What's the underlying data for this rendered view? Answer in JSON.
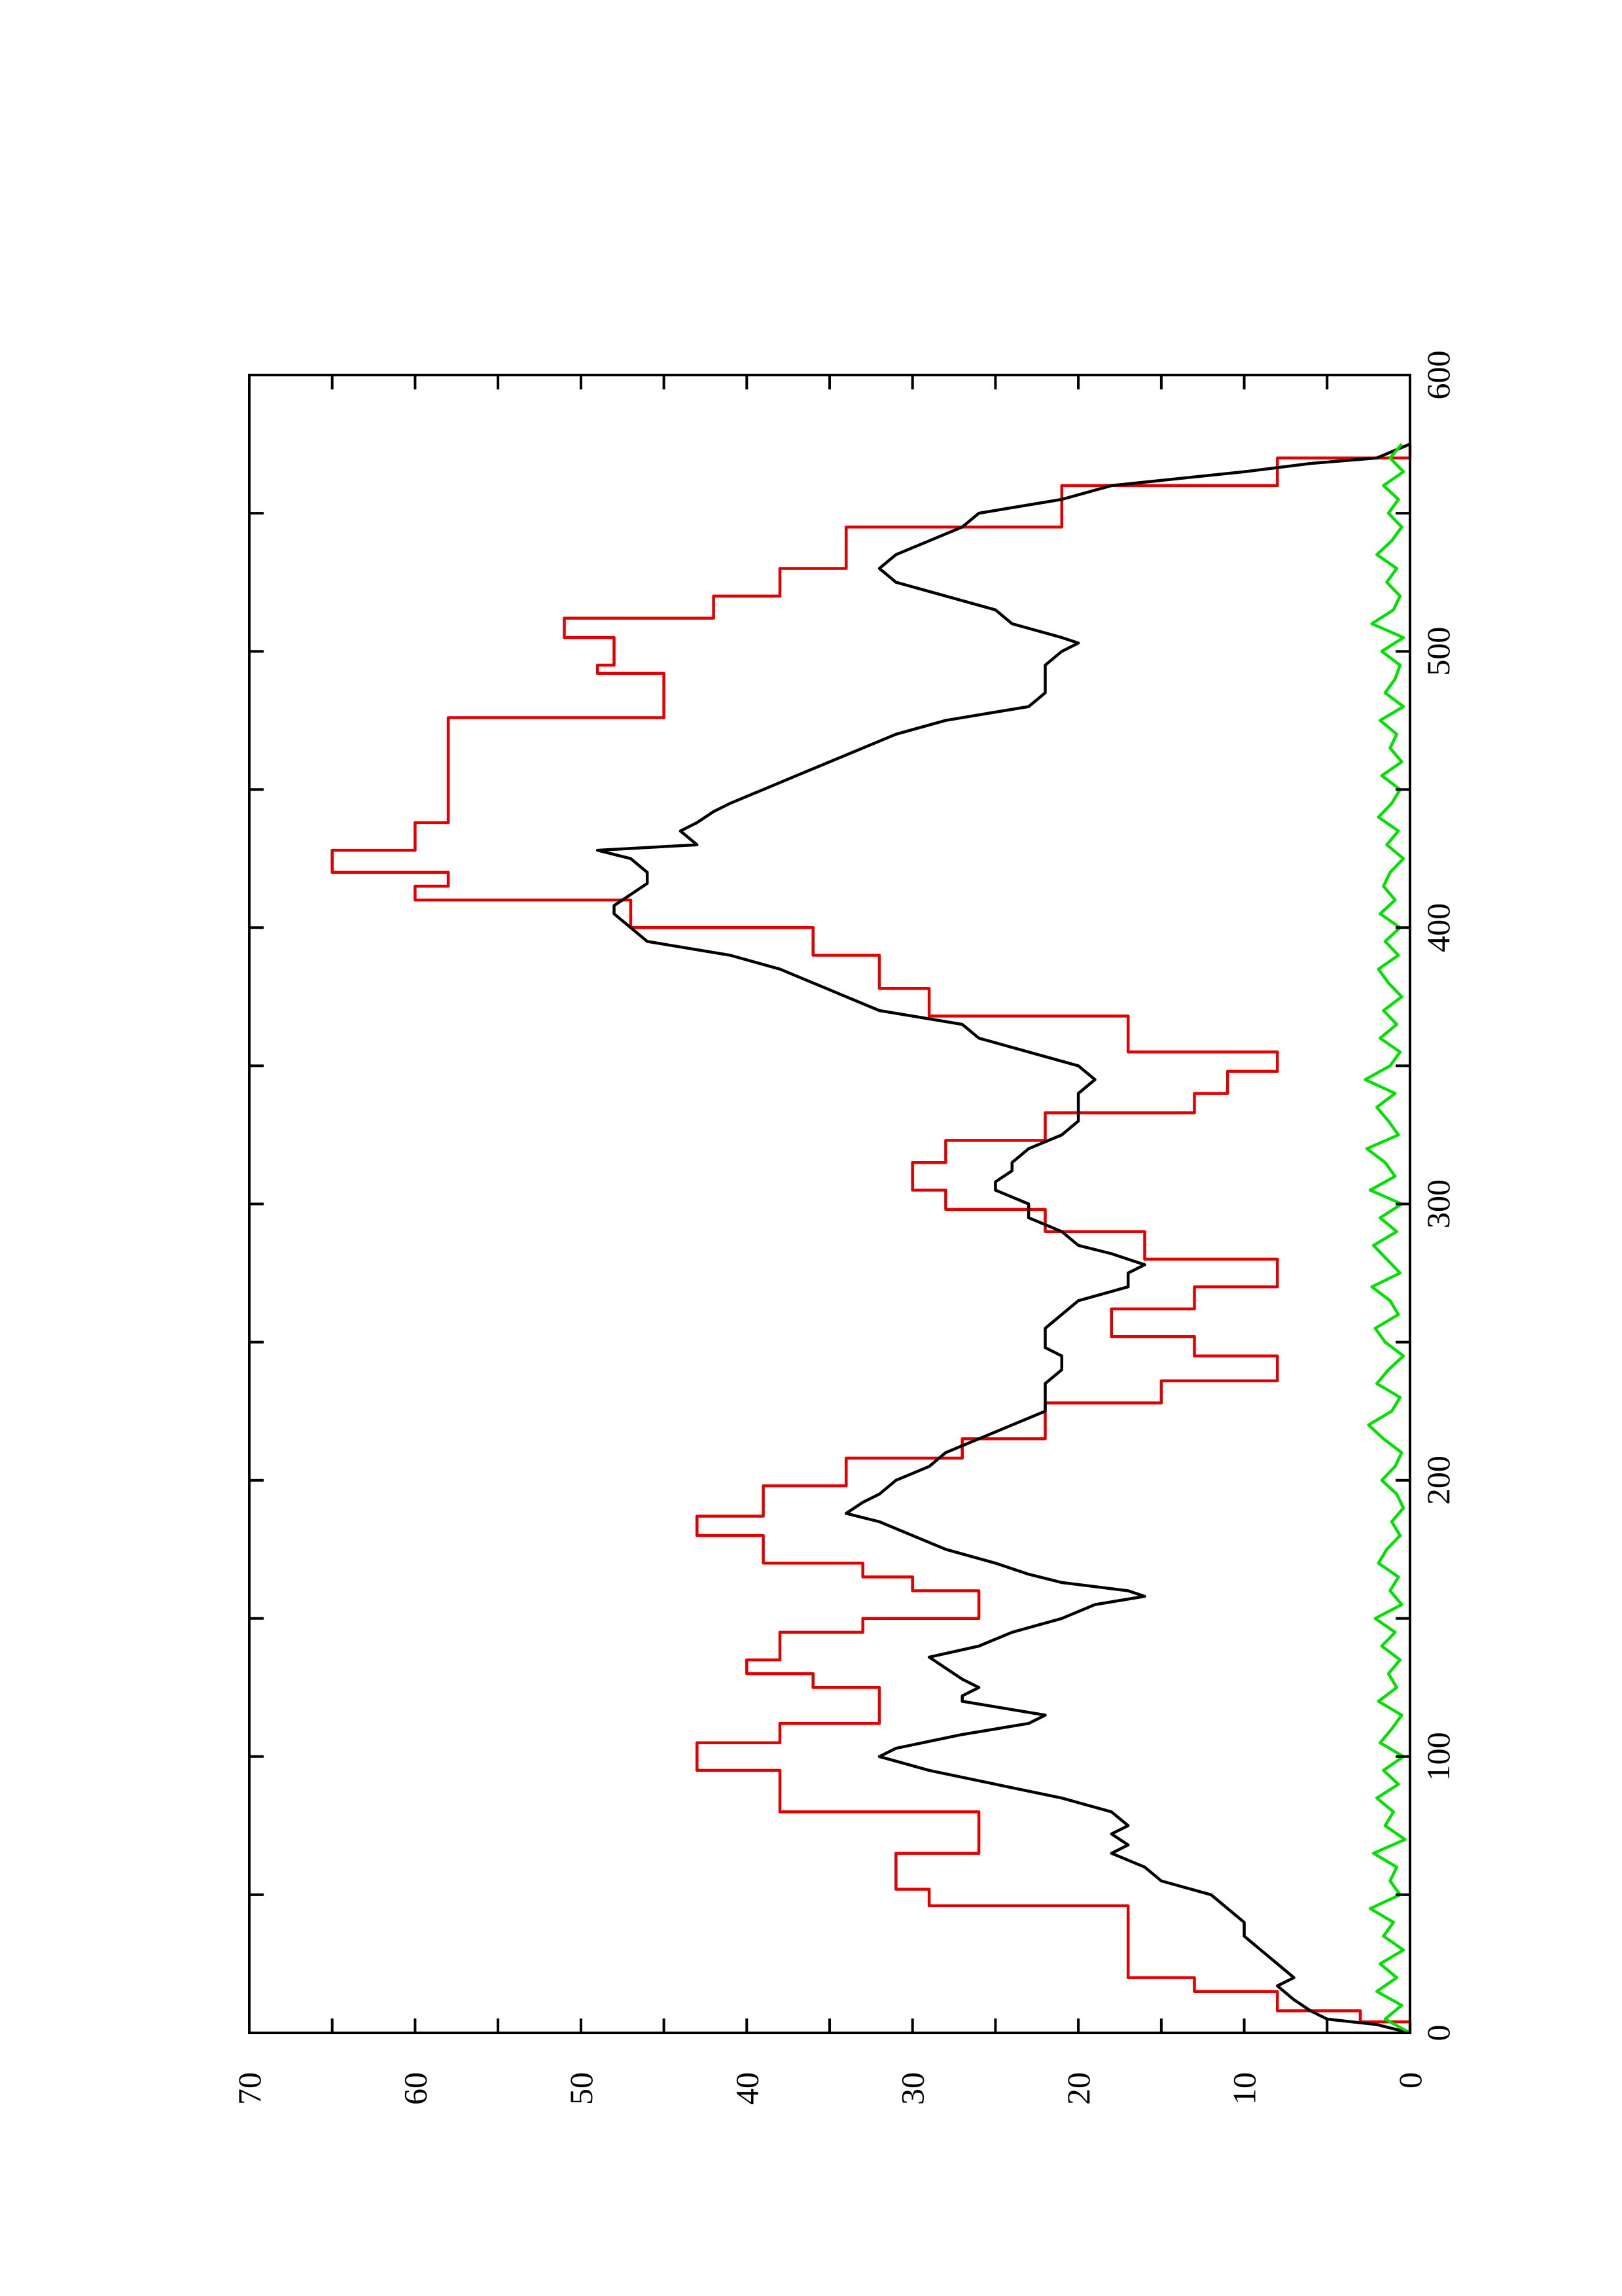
{
  "chart_data": {
    "type": "line",
    "orientation": "rotated-90-ccw",
    "title": "",
    "xlabel": "",
    "ylabel": "",
    "xlim": [
      0,
      600
    ],
    "ylim": [
      0,
      70
    ],
    "grid": false,
    "x_ticks": [
      "0",
      "100",
      "200",
      "300",
      "400",
      "500",
      "600"
    ],
    "y_ticks": [
      "0",
      "10",
      "20",
      "30",
      "40",
      "50",
      "60",
      "70"
    ],
    "colors": {
      "red_series": "#e00000",
      "black_series": "#000000",
      "green_series": "#00e000",
      "axes": "#000000"
    },
    "series": [
      {
        "color": "#e00000",
        "style": "step",
        "x": [
          0,
          4,
          4,
          8,
          8,
          15,
          15,
          20,
          20,
          32,
          32,
          46,
          46,
          52,
          52,
          65,
          65,
          80,
          80,
          95,
          95,
          105,
          105,
          112,
          112,
          125,
          125,
          130,
          130,
          135,
          135,
          145,
          145,
          150,
          150,
          160,
          160,
          165,
          165,
          170,
          170,
          180,
          180,
          187,
          187,
          198,
          198,
          208,
          208,
          215,
          215,
          228,
          228,
          236,
          236,
          245,
          245,
          252,
          252,
          262,
          262,
          270,
          270,
          280,
          280,
          290,
          290,
          298,
          298,
          305,
          305,
          315,
          315,
          323,
          323,
          333,
          333,
          340,
          340,
          348,
          348,
          355,
          355,
          368,
          368,
          378,
          378,
          390,
          390,
          400,
          400,
          410,
          410,
          415,
          415,
          420,
          420,
          428,
          428,
          438,
          438,
          455,
          455,
          476,
          476,
          492,
          492,
          495,
          495,
          505,
          505,
          512,
          512,
          520,
          520,
          530,
          530,
          545,
          545,
          560,
          560,
          570,
          570,
          575
        ],
        "y": [
          0,
          0,
          3,
          3,
          8,
          8,
          13,
          13,
          17,
          17,
          17,
          17,
          29,
          29,
          31,
          31,
          26,
          26,
          38,
          38,
          43,
          43,
          38,
          38,
          32,
          32,
          36,
          36,
          40,
          40,
          38,
          38,
          33,
          33,
          26,
          26,
          30,
          30,
          33,
          33,
          39,
          39,
          43,
          43,
          39,
          39,
          34,
          34,
          27,
          27,
          22,
          22,
          15,
          15,
          8,
          8,
          13,
          13,
          18,
          18,
          13,
          13,
          8,
          8,
          16,
          16,
          22,
          22,
          28,
          28,
          30,
          30,
          28,
          28,
          22,
          22,
          13,
          13,
          11,
          11,
          8,
          8,
          17,
          17,
          29,
          29,
          32,
          32,
          36,
          36,
          47,
          47,
          60,
          60,
          58,
          58,
          65,
          65,
          60,
          60,
          58,
          58,
          58,
          58,
          45,
          45,
          49,
          49,
          48,
          48,
          51,
          51,
          42,
          42,
          38,
          38,
          34,
          34,
          21,
          21,
          8,
          8,
          0,
          0
        ]
      },
      {
        "color": "#000000",
        "style": "line",
        "x": [
          0,
          3,
          5,
          8,
          12,
          17,
          20,
          25,
          30,
          35,
          40,
          45,
          50,
          55,
          60,
          65,
          68,
          72,
          75,
          80,
          85,
          90,
          95,
          100,
          103,
          108,
          112,
          115,
          118,
          120,
          122,
          125,
          128,
          132,
          136,
          140,
          145,
          150,
          155,
          158,
          160,
          163,
          166,
          170,
          175,
          180,
          185,
          188,
          192,
          195,
          200,
          205,
          210,
          215,
          220,
          225,
          230,
          235,
          240,
          245,
          248,
          252,
          255,
          260,
          265,
          270,
          275,
          278,
          282,
          285,
          290,
          295,
          300,
          305,
          308,
          312,
          315,
          320,
          325,
          330,
          335,
          340,
          345,
          350,
          355,
          360,
          365,
          370,
          375,
          380,
          385,
          390,
          395,
          400,
          405,
          408,
          412,
          416,
          420,
          425,
          428,
          430,
          435,
          438,
          442,
          445,
          450,
          455,
          460,
          465,
          470,
          475,
          478,
          480,
          485,
          490,
          495,
          500,
          503,
          505,
          510,
          515,
          520,
          525,
          530,
          535,
          540,
          545,
          550,
          555,
          560,
          565,
          568,
          570,
          575
        ],
        "y": [
          0,
          2,
          5,
          6,
          7,
          8,
          7,
          8,
          9,
          10,
          10,
          11,
          12,
          15,
          16,
          18,
          17,
          18,
          17,
          18,
          21,
          25,
          29,
          32,
          31,
          27,
          23,
          22,
          25,
          27,
          27,
          26,
          27,
          28,
          29,
          26,
          24,
          21,
          19,
          16,
          17,
          21,
          23,
          25,
          28,
          30,
          32,
          34,
          33,
          32,
          31,
          29,
          28,
          26,
          24,
          22,
          22,
          22,
          21,
          21,
          22,
          22,
          22,
          21,
          20,
          17,
          17,
          16,
          18,
          20,
          21,
          23,
          23,
          25,
          25,
          24,
          24,
          23,
          21,
          20,
          20,
          20,
          19,
          20,
          23,
          26,
          27,
          32,
          34,
          36,
          38,
          41,
          46,
          47,
          48,
          48,
          47,
          46,
          46,
          47,
          49,
          43,
          44,
          43,
          42,
          41,
          39,
          37,
          35,
          33,
          31,
          28,
          25,
          23,
          22,
          22,
          22,
          21,
          20,
          21,
          24,
          25,
          28,
          31,
          32,
          31,
          29,
          27,
          26,
          21,
          18,
          10,
          6,
          2,
          0
        ]
      },
      {
        "color": "#00e000",
        "style": "noisy-line",
        "x": [
          0,
          5,
          10,
          15,
          20,
          25,
          30,
          35,
          40,
          45,
          50,
          55,
          60,
          65,
          70,
          75,
          80,
          85,
          90,
          95,
          100,
          105,
          110,
          115,
          120,
          125,
          130,
          135,
          140,
          145,
          150,
          155,
          160,
          165,
          170,
          175,
          180,
          185,
          190,
          195,
          200,
          205,
          210,
          215,
          220,
          225,
          230,
          235,
          240,
          245,
          250,
          255,
          260,
          265,
          270,
          275,
          280,
          285,
          290,
          295,
          300,
          305,
          310,
          315,
          320,
          325,
          330,
          335,
          340,
          345,
          350,
          355,
          360,
          365,
          370,
          375,
          380,
          385,
          390,
          395,
          400,
          405,
          410,
          415,
          420,
          425,
          430,
          435,
          440,
          445,
          450,
          455,
          460,
          465,
          470,
          475,
          480,
          485,
          490,
          495,
          500,
          505,
          510,
          515,
          520,
          525,
          530,
          535,
          540,
          545,
          550,
          555,
          560,
          565,
          570,
          575
        ],
        "y": [
          0,
          1.5,
          0.5,
          2,
          0.8,
          1.8,
          0.4,
          1.6,
          1,
          2.4,
          0.6,
          1.2,
          0.8,
          2.2,
          0.3,
          1.5,
          1,
          2,
          0.7,
          1.6,
          0.4,
          1.8,
          1.1,
          0.5,
          1.9,
          0.8,
          1.3,
          0.6,
          1.7,
          0.9,
          2.1,
          0.5,
          1.2,
          0.7,
          1.9,
          1.4,
          0.6,
          1.1,
          0.4,
          0.8,
          1.7,
          0.9,
          0.5,
          1.6,
          2.5,
          1.1,
          0.6,
          2,
          1.3,
          0.4,
          1.5,
          2.1,
          0.7,
          1.2,
          2.3,
          0.6,
          1.4,
          2.2,
          0.8,
          1.8,
          0.5,
          2.4,
          0.9,
          1.5,
          2.6,
          0.7,
          1.3,
          2,
          0.9,
          2.7,
          1.2,
          0.6,
          1.8,
          0.8,
          1.6,
          0.5,
          1.3,
          1.9,
          0.7,
          1.5,
          0.6,
          1.8,
          0.9,
          1.6,
          1.2,
          0.4,
          1.4,
          0.7,
          1.9,
          1.1,
          0.6,
          1.7,
          0.5,
          1.2,
          0.8,
          1.8,
          0.4,
          1.5,
          0.9,
          0.6,
          1.7,
          0.4,
          2.3,
          1,
          0.6,
          1.4,
          0.8,
          2,
          1.1,
          0.5,
          1.3,
          0.7,
          1.6,
          0.4,
          1.2,
          0.5
        ]
      }
    ]
  }
}
